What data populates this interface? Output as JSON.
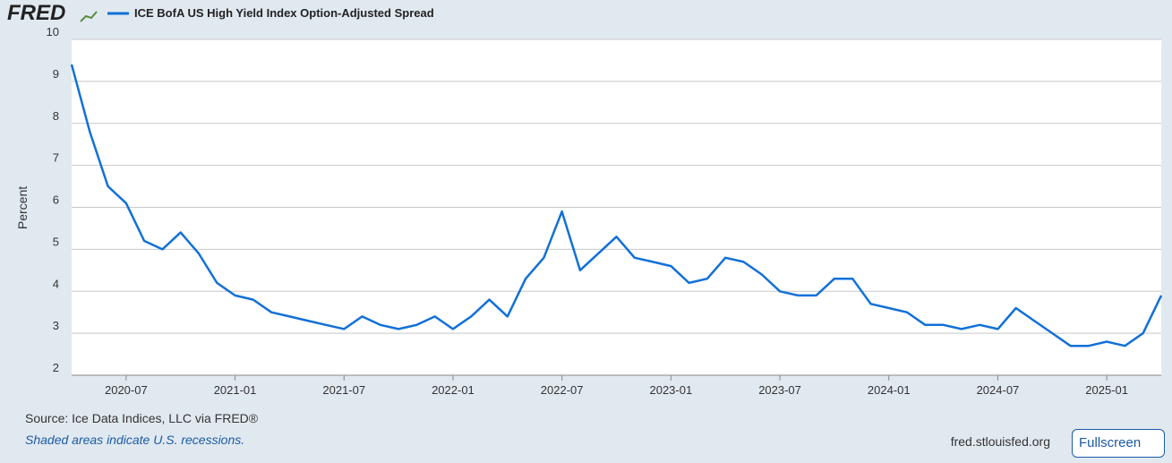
{
  "logo": "FRED",
  "source": "Source: Ice Data Indices, LLC via FRED®",
  "note": "Shaded areas indicate U.S. recessions.",
  "site": "fred.stlouisfed.org",
  "button": "Fullscreen",
  "chart_data": {
    "type": "line",
    "y_label": "Percent",
    "x": [
      "2020-04",
      "2020-05",
      "2020-06",
      "2020-07",
      "2020-08",
      "2020-09",
      "2020-10",
      "2020-11",
      "2020-12",
      "2021-01",
      "2021-02",
      "2021-03",
      "2021-04",
      "2021-05",
      "2021-06",
      "2021-07",
      "2021-08",
      "2021-09",
      "2021-10",
      "2021-11",
      "2021-12",
      "2022-01",
      "2022-02",
      "2022-03",
      "2022-04",
      "2022-05",
      "2022-06",
      "2022-07",
      "2022-08",
      "2022-09",
      "2022-10",
      "2022-11",
      "2022-12",
      "2023-01",
      "2023-02",
      "2023-03",
      "2023-04",
      "2023-05",
      "2023-06",
      "2023-07",
      "2023-08",
      "2023-09",
      "2023-10",
      "2023-11",
      "2023-12",
      "2024-01",
      "2024-02",
      "2024-03",
      "2024-04",
      "2024-05",
      "2024-06",
      "2024-07",
      "2024-08",
      "2024-09",
      "2024-10",
      "2024-11",
      "2024-12",
      "2025-01",
      "2025-02",
      "2025-03",
      "2025-04"
    ],
    "series": [
      {
        "name": "ICE BofA US High Yield Index Option-Adjusted Spread",
        "color": "#1170d8",
        "values": [
          9.4,
          7.8,
          6.5,
          6.1,
          5.2,
          5.0,
          5.4,
          4.9,
          4.2,
          3.9,
          3.8,
          3.5,
          3.4,
          3.3,
          3.2,
          3.1,
          3.4,
          3.2,
          3.1,
          3.2,
          3.4,
          3.1,
          3.4,
          3.8,
          3.4,
          4.3,
          4.8,
          5.9,
          4.5,
          4.9,
          5.3,
          4.8,
          4.7,
          4.6,
          4.2,
          4.3,
          4.8,
          4.7,
          4.4,
          4.0,
          3.9,
          3.9,
          4.3,
          4.3,
          3.7,
          3.6,
          3.5,
          3.2,
          3.2,
          3.1,
          3.2,
          3.1,
          3.6,
          3.3,
          3.0,
          2.7,
          2.7,
          2.8,
          2.7,
          3.0,
          3.9
        ]
      }
    ],
    "xlim": [
      "2020-04",
      "2025-04"
    ],
    "xticks": [
      "2020-07",
      "2021-01",
      "2021-07",
      "2022-01",
      "2022-07",
      "2023-01",
      "2023-07",
      "2024-01",
      "2024-07",
      "2025-01"
    ],
    "ylim": [
      2,
      10
    ],
    "yticks": [
      2,
      3,
      4,
      5,
      6,
      7,
      8,
      9,
      10
    ],
    "grid": true,
    "legend": "top-left"
  }
}
